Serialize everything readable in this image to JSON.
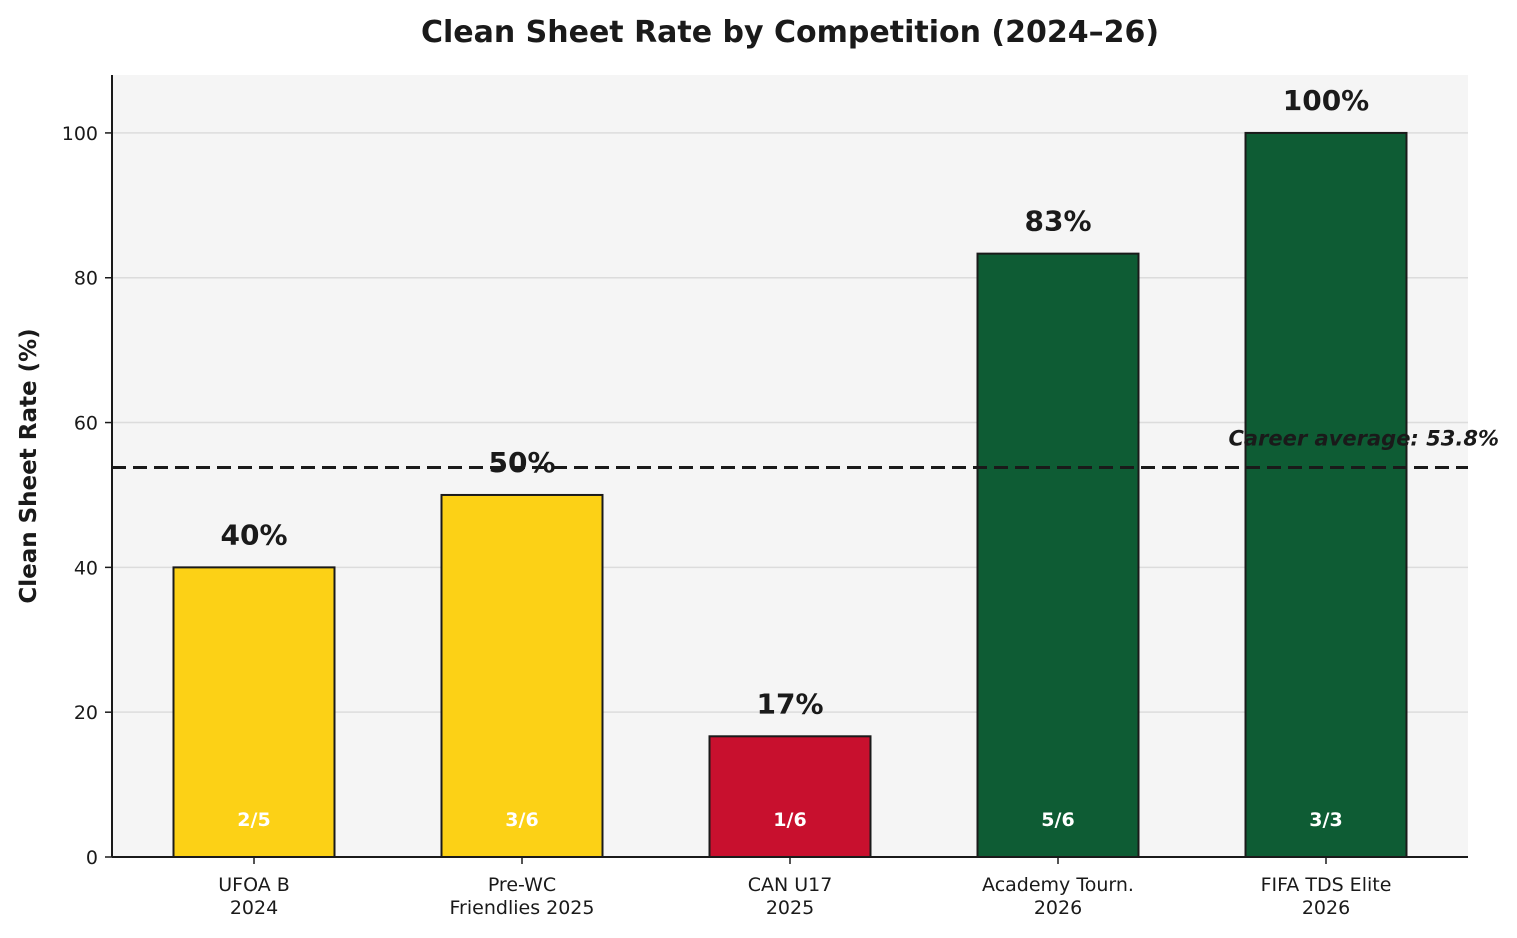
{
  "chart_data": {
    "type": "bar",
    "title": "Clean Sheet Rate by Competition (2024–26)",
    "xlabel": "",
    "ylabel": "Clean Sheet Rate (%)",
    "ylim": [
      0,
      108
    ],
    "yticks": [
      0,
      20,
      40,
      60,
      80,
      100
    ],
    "grid": "horizontal",
    "categories": [
      [
        "UFOA B",
        "2024"
      ],
      [
        "Pre-WC",
        "Friendlies 2025"
      ],
      [
        "CAN U17",
        "2025"
      ],
      [
        "Academy Tourn.",
        "2026"
      ],
      [
        "FIFA TDS Elite",
        "2026"
      ]
    ],
    "values": [
      40,
      50,
      16.67,
      83.33,
      100
    ],
    "value_labels": [
      "40%",
      "50%",
      "17%",
      "83%",
      "100%"
    ],
    "record_labels": [
      "2/5",
      "3/6",
      "1/6",
      "5/6",
      "3/3"
    ],
    "bar_colors": [
      "#fcd116",
      "#fcd116",
      "#c8102e",
      "#0e5c34",
      "#0e5c34"
    ],
    "reference_line": {
      "value": 53.8,
      "label": "Career average: 53.8%",
      "color": "#1a1a1a",
      "style": "dashed"
    },
    "plot_background": "#f5f5f5"
  }
}
